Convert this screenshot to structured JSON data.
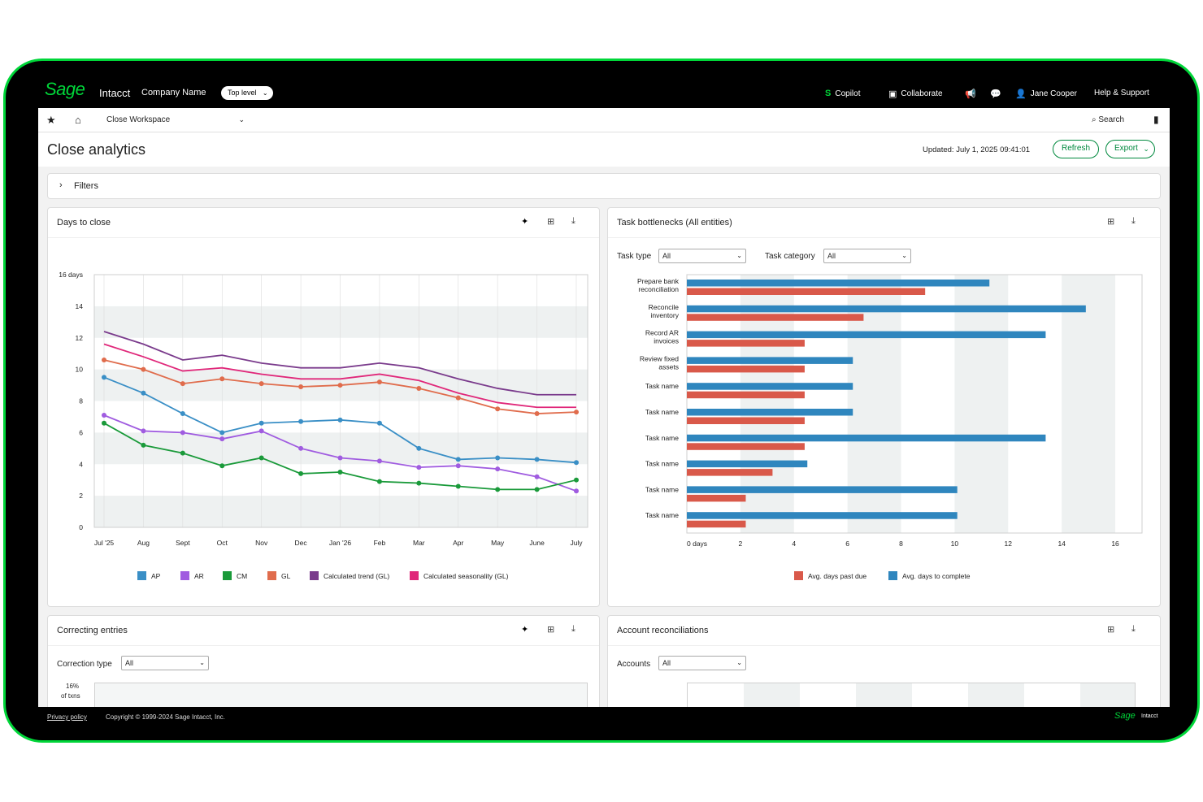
{
  "topbar": {
    "logo": "Sage",
    "product": "Intacct",
    "company": "Company Name",
    "level": "Top level",
    "copilot": "Copilot",
    "collaborate": "Collaborate",
    "user": "Jane Cooper",
    "help": "Help & Support"
  },
  "nav": {
    "workspace": "Close Workspace",
    "search": "Search"
  },
  "page": {
    "title": "Close analytics",
    "updated": "Updated: July 1, 2025  09:41:01",
    "refresh": "Refresh",
    "export": "Export",
    "filters": "Filters"
  },
  "days_card": {
    "title": "Days to close"
  },
  "bottleneck_card": {
    "title": "Task bottlenecks (All entities)",
    "task_type_label": "Task type",
    "task_type_value": "All",
    "task_category_label": "Task category",
    "task_category_value": "All"
  },
  "correcting_card": {
    "title": "Correcting entries",
    "type_label": "Correction type",
    "type_value": "All",
    "ylabel_top": "16%",
    "ylabel_bottom": "of txns"
  },
  "recon_card": {
    "title": "Account reconciliations",
    "accounts_label": "Accounts",
    "accounts_value": "All"
  },
  "footer": {
    "privacy": "Privacy policy",
    "copyright": "Copyright © 1999-2024 Sage Intacct, Inc.",
    "brand": "Sage",
    "brand_product": "Intacct"
  },
  "colors": {
    "brand_green": "#00d639",
    "button_green": "#00893e",
    "AP": "#3a8fc6",
    "AR": "#a05ce0",
    "CM": "#1a9a3a",
    "GL": "#e06c4c",
    "trend": "#7a3b8c",
    "seasonality": "#e0287a",
    "past_due": "#d9594a",
    "to_complete": "#2f86be"
  },
  "chart_data": [
    {
      "type": "line",
      "title": "Days to close",
      "x": [
        "Jul '25",
        "Aug",
        "Sept",
        "Oct",
        "Nov",
        "Dec",
        "Jan '26",
        "Feb",
        "Mar",
        "Apr",
        "May",
        "June",
        "July"
      ],
      "y_ticks": [
        "16 days",
        "14",
        "12",
        "10",
        "8",
        "6",
        "4",
        "2",
        "0"
      ],
      "ylim": [
        0,
        16
      ],
      "grid": "horizontal bands",
      "legend": "bottom",
      "series": [
        {
          "name": "AP",
          "color": "#3a8fc6",
          "markers": true,
          "values": [
            9.5,
            8.5,
            7.2,
            6.0,
            6.6,
            6.7,
            6.8,
            6.6,
            5.0,
            4.3,
            4.4,
            4.3,
            4.1
          ]
        },
        {
          "name": "AR",
          "color": "#a05ce0",
          "markers": true,
          "values": [
            7.1,
            6.1,
            6.0,
            5.6,
            6.1,
            5.0,
            4.4,
            4.2,
            3.8,
            3.9,
            3.7,
            3.2,
            2.3
          ]
        },
        {
          "name": "CM",
          "color": "#1a9a3a",
          "markers": true,
          "values": [
            6.6,
            5.2,
            4.7,
            3.9,
            4.4,
            3.4,
            3.5,
            2.9,
            2.8,
            2.6,
            2.4,
            2.4,
            3.0
          ]
        },
        {
          "name": "GL",
          "color": "#e06c4c",
          "markers": true,
          "values": [
            10.6,
            10.0,
            9.1,
            9.4,
            9.1,
            8.9,
            9.0,
            9.2,
            8.8,
            8.2,
            7.5,
            7.2,
            7.3
          ]
        },
        {
          "name": "Calculated trend (GL)",
          "color": "#7a3b8c",
          "markers": false,
          "values": [
            12.4,
            11.6,
            10.6,
            10.9,
            10.4,
            10.1,
            10.1,
            10.4,
            10.1,
            9.4,
            8.8,
            8.4,
            8.4
          ]
        },
        {
          "name": "Calculated seasonality (GL)",
          "color": "#e0287a",
          "markers": false,
          "values": [
            11.6,
            10.8,
            9.9,
            10.1,
            9.7,
            9.4,
            9.4,
            9.7,
            9.3,
            8.5,
            7.9,
            7.6,
            7.6
          ]
        }
      ]
    },
    {
      "type": "bar",
      "orientation": "horizontal",
      "title": "Task bottlenecks (All entities)",
      "categories": [
        [
          "Prepare bank",
          "reconciliation"
        ],
        [
          "Reconcile",
          "inventory"
        ],
        [
          "Record AR",
          "invoices"
        ],
        [
          "Review fixed",
          "assets"
        ],
        [
          "Task name"
        ],
        [
          "Task name"
        ],
        [
          "Task name"
        ],
        [
          "Task name"
        ],
        [
          "Task name"
        ],
        [
          "Task name"
        ]
      ],
      "x_ticks": [
        "0 days",
        "2",
        "4",
        "6",
        "8",
        "10",
        "12",
        "14",
        "16"
      ],
      "xlim": [
        0,
        17
      ],
      "legend": "bottom",
      "series": [
        {
          "name": "Avg. days to complete",
          "color": "#2f86be",
          "values": [
            11.3,
            14.9,
            13.4,
            6.2,
            6.2,
            6.2,
            13.4,
            4.5,
            10.1,
            10.1
          ]
        },
        {
          "name": "Avg. days past due",
          "color": "#d9594a",
          "values": [
            8.9,
            6.6,
            4.4,
            4.4,
            4.4,
            4.4,
            4.4,
            3.2,
            2.2,
            2.2
          ]
        }
      ]
    }
  ]
}
